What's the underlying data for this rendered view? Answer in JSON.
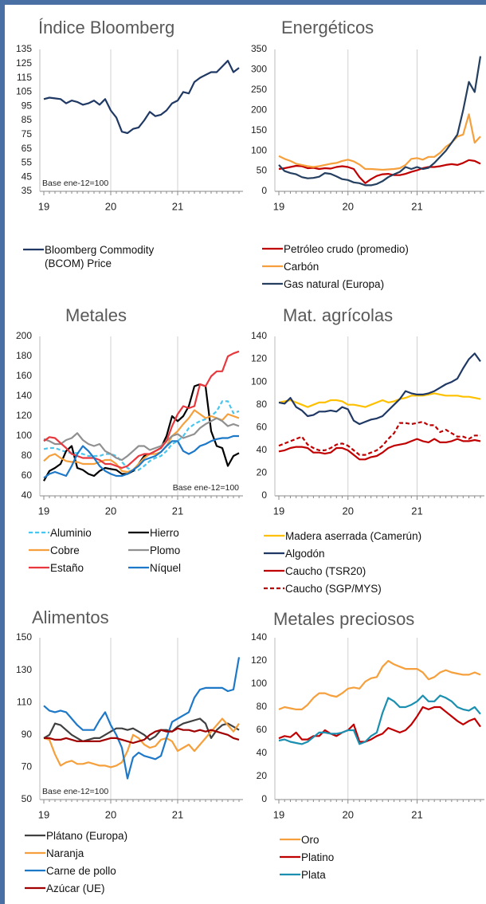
{
  "chart_data": [
    {
      "type": "line",
      "title": "Índice Bloomberg",
      "annotation": "Base ene-12=100",
      "annotation_position": "lower left",
      "categories": [
        "19",
        null,
        null,
        null,
        null,
        null,
        null,
        null,
        null,
        null,
        null,
        null,
        "20",
        null,
        null,
        null,
        null,
        null,
        null,
        null,
        null,
        null,
        null,
        null,
        "21",
        null,
        null,
        null,
        null,
        null,
        null,
        null,
        null,
        null,
        null,
        null
      ],
      "ylim": [
        35,
        135
      ],
      "yticks": [
        35,
        45,
        55,
        65,
        75,
        85,
        95,
        105,
        115,
        125,
        135
      ],
      "xgrid": true,
      "series": [
        {
          "name": "Bloomberg Commodity (BCOM) Price",
          "color": "#1f3864",
          "values": [
            100,
            101,
            100.5,
            100,
            97,
            99,
            98,
            96,
            97,
            99,
            96,
            100,
            92,
            87,
            77,
            76,
            79,
            80,
            85,
            91,
            88,
            89,
            92,
            97,
            99,
            105,
            104,
            112,
            115,
            117,
            119,
            119,
            123,
            127,
            119,
            122
          ]
        }
      ]
    },
    {
      "type": "line",
      "title": "Energéticos",
      "categories": [
        "19",
        null,
        null,
        null,
        null,
        null,
        null,
        null,
        null,
        null,
        null,
        null,
        "20",
        null,
        null,
        null,
        null,
        null,
        null,
        null,
        null,
        null,
        null,
        null,
        "21",
        null,
        null,
        null,
        null,
        null,
        null,
        null,
        null,
        null,
        null,
        null
      ],
      "ylim": [
        0,
        350
      ],
      "yticks": [
        0,
        50,
        100,
        150,
        200,
        250,
        300,
        350
      ],
      "xgrid": true,
      "series": [
        {
          "name": "Petróleo crudo (promedio)",
          "color": "#c00000",
          "values": [
            55,
            57,
            60,
            63,
            62,
            57,
            58,
            55,
            57,
            56,
            60,
            62,
            60,
            55,
            35,
            20,
            30,
            38,
            42,
            43,
            40,
            40,
            43,
            48,
            52,
            57,
            60,
            60,
            62,
            65,
            67,
            65,
            70,
            77,
            75,
            68
          ]
        },
        {
          "name": "Carbón",
          "color": "#f5a03c",
          "values": [
            87,
            80,
            75,
            68,
            65,
            62,
            60,
            62,
            65,
            68,
            70,
            75,
            78,
            74,
            66,
            55,
            55,
            54,
            53,
            54,
            55,
            57,
            65,
            80,
            82,
            78,
            85,
            85,
            95,
            110,
            120,
            135,
            140,
            190,
            120,
            135
          ]
        },
        {
          "name": "Gas natural (Europa)",
          "color": "#243f60",
          "values": [
            65,
            50,
            45,
            42,
            35,
            32,
            33,
            36,
            45,
            43,
            37,
            30,
            28,
            22,
            20,
            15,
            15,
            18,
            25,
            35,
            42,
            48,
            60,
            55,
            60,
            55,
            58,
            70,
            85,
            100,
            120,
            140,
            200,
            270,
            245,
            333
          ]
        }
      ]
    },
    {
      "type": "line",
      "title": "Metales",
      "annotation": "Base ene-12=100",
      "annotation_position": "lower right",
      "categories": [
        "19",
        null,
        null,
        null,
        null,
        null,
        null,
        null,
        null,
        null,
        null,
        null,
        "20",
        null,
        null,
        null,
        null,
        null,
        null,
        null,
        null,
        null,
        null,
        null,
        "21",
        null,
        null,
        null,
        null,
        null,
        null,
        null,
        null,
        null,
        null,
        null
      ],
      "ylim": [
        40,
        200
      ],
      "yticks": [
        40,
        60,
        80,
        100,
        120,
        140,
        160,
        180,
        200
      ],
      "xgrid": true,
      "series": [
        {
          "name": "Aluminio",
          "color": "#4ac6ee",
          "dash": true,
          "values": [
            87,
            88,
            88,
            86,
            84,
            83,
            83,
            82,
            80,
            80,
            80,
            82,
            82,
            80,
            74,
            68,
            65,
            66,
            70,
            75,
            78,
            80,
            85,
            92,
            95,
            100,
            108,
            112,
            115,
            117,
            120,
            125,
            135,
            135,
            123,
            125
          ]
        },
        {
          "name": "Hierro",
          "color": "#000000",
          "values": [
            55,
            65,
            68,
            72,
            85,
            90,
            68,
            66,
            62,
            60,
            65,
            68,
            67,
            66,
            62,
            62,
            65,
            72,
            80,
            82,
            85,
            88,
            100,
            120,
            115,
            120,
            130,
            150,
            152,
            150,
            105,
            90,
            88,
            70,
            80,
            83
          ]
        },
        {
          "name": "Cobre",
          "color": "#f5a03c",
          "values": [
            75,
            80,
            82,
            78,
            75,
            74,
            74,
            72,
            72,
            72,
            74,
            76,
            76,
            72,
            65,
            64,
            66,
            72,
            78,
            82,
            82,
            84,
            90,
            100,
            105,
            112,
            118,
            126,
            122,
            118,
            120,
            118,
            116,
            122,
            120,
            118
          ]
        },
        {
          "name": "Plomo",
          "color": "#909090",
          "values": [
            97,
            95,
            92,
            92,
            96,
            98,
            103,
            96,
            92,
            90,
            92,
            85,
            82,
            78,
            76,
            80,
            85,
            90,
            90,
            86,
            88,
            90,
            95,
            100,
            102,
            98,
            100,
            102,
            108,
            112,
            115,
            118,
            115,
            110,
            112,
            110
          ]
        },
        {
          "name": "Estaño",
          "color": "#e8383d",
          "values": [
            95,
            99,
            98,
            93,
            88,
            82,
            80,
            78,
            78,
            78,
            76,
            72,
            72,
            70,
            68,
            70,
            75,
            80,
            82,
            82,
            85,
            88,
            95,
            110,
            122,
            130,
            128,
            130,
            152,
            150,
            160,
            165,
            165,
            180,
            183,
            185
          ]
        },
        {
          "name": "Níquel",
          "color": "#1e78c8",
          "values": [
            58,
            62,
            64,
            62,
            60,
            70,
            82,
            90,
            85,
            78,
            70,
            65,
            62,
            60,
            60,
            62,
            66,
            70,
            76,
            78,
            80,
            84,
            90,
            95,
            95,
            85,
            82,
            85,
            90,
            92,
            95,
            97,
            98,
            98,
            100,
            100
          ]
        }
      ]
    },
    {
      "type": "line",
      "title": "Mat. agrícolas",
      "categories": [
        "19",
        null,
        null,
        null,
        null,
        null,
        null,
        null,
        null,
        null,
        null,
        null,
        "20",
        null,
        null,
        null,
        null,
        null,
        null,
        null,
        null,
        null,
        null,
        null,
        "21",
        null,
        null,
        null,
        null,
        null,
        null,
        null,
        null,
        null,
        null,
        null
      ],
      "ylim": [
        0,
        140
      ],
      "yticks": [
        0,
        20,
        40,
        60,
        80,
        100,
        120,
        140
      ],
      "xgrid": true,
      "series": [
        {
          "name": "Madera aserrada (Camerún)",
          "color": "#ffc000",
          "values": [
            82,
            83,
            84,
            82,
            80,
            78,
            80,
            82,
            82,
            84,
            84,
            83,
            80,
            80,
            79,
            78,
            80,
            82,
            84,
            82,
            83,
            85,
            86,
            88,
            88,
            88,
            89,
            90,
            89,
            88,
            88,
            88,
            87,
            87,
            86,
            85
          ]
        },
        {
          "name": "Algodón",
          "color": "#1f3864",
          "values": [
            82,
            81,
            86,
            78,
            75,
            70,
            71,
            74,
            74,
            75,
            74,
            78,
            76,
            66,
            63,
            65,
            67,
            68,
            70,
            75,
            80,
            85,
            92,
            90,
            89,
            89,
            90,
            92,
            95,
            98,
            100,
            103,
            112,
            120,
            125,
            118
          ]
        },
        {
          "name": "Caucho (TSR20)",
          "color": "#c00000",
          "values": [
            39,
            40,
            42,
            43,
            43,
            42,
            38,
            38,
            37,
            38,
            42,
            42,
            40,
            36,
            32,
            32,
            34,
            35,
            38,
            42,
            44,
            45,
            46,
            48,
            50,
            48,
            47,
            50,
            47,
            47,
            48,
            50,
            48,
            48,
            49,
            48
          ]
        },
        {
          "name": "Caucho (SGP/MYS)",
          "color": "#c00000",
          "dash": true,
          "values": [
            44,
            46,
            48,
            50,
            52,
            45,
            42,
            40,
            40,
            42,
            45,
            46,
            44,
            40,
            36,
            36,
            38,
            40,
            44,
            50,
            55,
            64,
            64,
            63,
            64,
            65,
            62,
            62,
            56,
            58,
            55,
            52,
            52,
            50,
            53,
            53
          ]
        }
      ]
    },
    {
      "type": "line",
      "title": "Alimentos",
      "annotation": "Base ene-12=100",
      "annotation_position": "lower left",
      "categories": [
        "19",
        null,
        null,
        null,
        null,
        null,
        null,
        null,
        null,
        null,
        null,
        null,
        "20",
        null,
        null,
        null,
        null,
        null,
        null,
        null,
        null,
        null,
        null,
        null,
        "21",
        null,
        null,
        null,
        null,
        null,
        null,
        null,
        null,
        null,
        null,
        null
      ],
      "ylim": [
        50,
        150
      ],
      "yticks": [
        50,
        70,
        90,
        110,
        130,
        150
      ],
      "xgrid": true,
      "series": [
        {
          "name": "Plátano (Europa)",
          "color": "#404040",
          "values": [
            88,
            90,
            97,
            96,
            93,
            90,
            88,
            86,
            87,
            88,
            88,
            90,
            92,
            94,
            94,
            93,
            94,
            92,
            90,
            87,
            89,
            93,
            93,
            92,
            95,
            97,
            98,
            99,
            100,
            97,
            88,
            93,
            96,
            97,
            95,
            93
          ]
        },
        {
          "name": "Naranja",
          "color": "#f5a03c",
          "values": [
            88,
            87,
            78,
            71,
            73,
            74,
            72,
            72,
            73,
            72,
            71,
            71,
            70,
            71,
            73,
            80,
            90,
            88,
            84,
            82,
            83,
            87,
            88,
            86,
            80,
            82,
            84,
            80,
            84,
            88,
            92,
            96,
            100,
            96,
            92,
            97
          ]
        },
        {
          "name": "Carne de pollo",
          "color": "#1e78c8",
          "values": [
            108,
            105,
            104,
            105,
            104,
            100,
            96,
            93,
            93,
            93,
            99,
            104,
            96,
            90,
            82,
            63,
            76,
            79,
            77,
            76,
            75,
            77,
            88,
            98,
            100,
            102,
            104,
            113,
            118,
            119,
            119,
            119,
            119,
            117,
            118,
            138
          ]
        },
        {
          "name": "Azúcar (UE)",
          "color": "#a00000",
          "values": [
            88,
            88,
            87,
            87,
            88,
            87,
            86,
            86,
            86,
            86,
            86,
            87,
            88,
            88,
            87,
            86,
            85,
            86,
            87,
            90,
            92,
            93,
            92,
            92,
            94,
            93,
            93,
            92,
            93,
            92,
            93,
            92,
            91,
            90,
            88,
            87
          ]
        }
      ]
    },
    {
      "type": "line",
      "title": "Metales preciosos",
      "categories": [
        "19",
        null,
        null,
        null,
        null,
        null,
        null,
        null,
        null,
        null,
        null,
        null,
        "20",
        null,
        null,
        null,
        null,
        null,
        null,
        null,
        null,
        null,
        null,
        null,
        "21",
        null,
        null,
        null,
        null,
        null,
        null,
        null,
        null,
        null,
        null,
        null
      ],
      "ylim": [
        0,
        140
      ],
      "yticks": [
        0,
        20,
        40,
        60,
        80,
        100,
        120,
        140
      ],
      "xgrid": true,
      "series": [
        {
          "name": "Oro",
          "color": "#f5a03c",
          "values": [
            78,
            80,
            79,
            78,
            78,
            82,
            88,
            92,
            92,
            90,
            89,
            92,
            96,
            97,
            96,
            102,
            105,
            106,
            115,
            120,
            117,
            115,
            113,
            113,
            113,
            110,
            104,
            106,
            110,
            112,
            110,
            109,
            108,
            108,
            110,
            108
          ]
        },
        {
          "name": "Platino",
          "color": "#c00000",
          "values": [
            53,
            55,
            54,
            58,
            52,
            52,
            55,
            55,
            60,
            57,
            55,
            58,
            60,
            65,
            50,
            50,
            52,
            55,
            57,
            62,
            60,
            58,
            60,
            65,
            72,
            80,
            78,
            80,
            80,
            76,
            72,
            68,
            65,
            68,
            70,
            63
          ]
        },
        {
          "name": "Plata",
          "color": "#1a8fb0",
          "values": [
            51,
            52,
            50,
            49,
            48,
            50,
            54,
            58,
            58,
            57,
            57,
            58,
            60,
            60,
            48,
            50,
            55,
            58,
            75,
            88,
            85,
            80,
            80,
            82,
            85,
            90,
            85,
            85,
            90,
            88,
            85,
            80,
            78,
            77,
            80,
            74
          ]
        }
      ]
    }
  ]
}
